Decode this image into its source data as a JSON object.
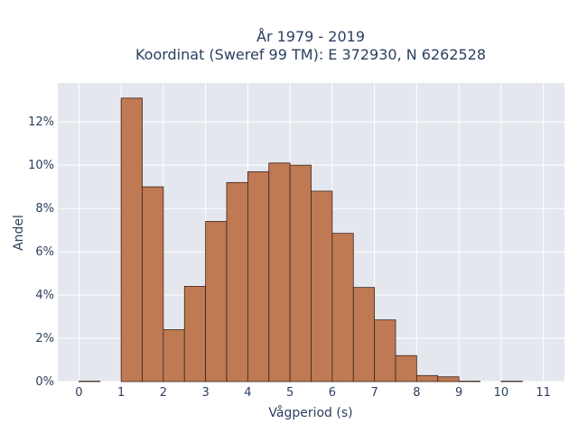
{
  "chart_data": {
    "type": "bar",
    "title_lines": [
      "År 1979 - 2019",
      "Koordinat (Sweref 99 TM): E 372930, N 6262528"
    ],
    "xlabel": "Vågperiod (s)",
    "ylabel": "Andel",
    "xlim": [
      -0.5,
      11.5
    ],
    "ylim": [
      0,
      13.8
    ],
    "x_ticks": [
      0,
      1,
      2,
      3,
      4,
      5,
      6,
      7,
      8,
      9,
      10,
      11
    ],
    "y_ticks": [
      0,
      2,
      4,
      6,
      8,
      10,
      12
    ],
    "y_tick_labels": [
      "0%",
      "2%",
      "4%",
      "6%",
      "8%",
      "10%",
      "12%"
    ],
    "bin_width": 0.5,
    "bins": [
      {
        "x0": 0.0,
        "value": 0.02
      },
      {
        "x0": 1.0,
        "value": 13.1
      },
      {
        "x0": 1.5,
        "value": 9.0
      },
      {
        "x0": 2.0,
        "value": 2.4
      },
      {
        "x0": 2.5,
        "value": 4.4
      },
      {
        "x0": 3.0,
        "value": 7.4
      },
      {
        "x0": 3.5,
        "value": 9.2
      },
      {
        "x0": 4.0,
        "value": 9.7
      },
      {
        "x0": 4.5,
        "value": 10.1
      },
      {
        "x0": 5.0,
        "value": 10.0
      },
      {
        "x0": 5.5,
        "value": 8.8
      },
      {
        "x0": 6.0,
        "value": 6.85
      },
      {
        "x0": 6.5,
        "value": 4.35
      },
      {
        "x0": 7.0,
        "value": 2.85
      },
      {
        "x0": 7.5,
        "value": 1.2
      },
      {
        "x0": 8.0,
        "value": 0.28
      },
      {
        "x0": 8.5,
        "value": 0.22
      },
      {
        "x0": 9.0,
        "value": 0.02
      },
      {
        "x0": 10.0,
        "value": 0.02
      }
    ],
    "grid": true,
    "colors": {
      "bar": "#bf7a54",
      "bar_edge": "#3d2418",
      "plot_bg": "#e5e7ef",
      "grid": "#ffffff"
    }
  }
}
